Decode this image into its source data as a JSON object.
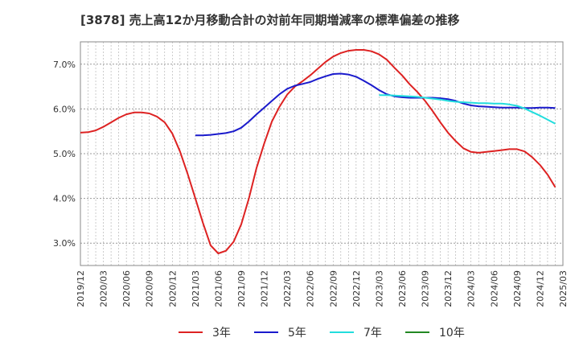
{
  "chart_data": {
    "type": "line",
    "title": "[3878]  売上高12か月移動合計の対前年同期増減率の標準偏差の推移",
    "xlabel": "",
    "ylabel": "",
    "ylim": [
      2.5,
      7.5
    ],
    "yticks": [
      "3.0%",
      "4.0%",
      "5.0%",
      "6.0%",
      "7.0%"
    ],
    "ytick_values": [
      3.0,
      4.0,
      5.0,
      6.0,
      7.0
    ],
    "xticks": [
      "2019/12",
      "2020/03",
      "2020/06",
      "2020/09",
      "2020/12",
      "2021/03",
      "2021/06",
      "2021/09",
      "2021/12",
      "2022/03",
      "2022/06",
      "2022/09",
      "2022/12",
      "2023/03",
      "2023/06",
      "2023/09",
      "2023/12",
      "2024/03",
      "2024/06",
      "2024/09",
      "2024/12",
      "2025/03"
    ],
    "grid": true,
    "legend_position": "bottom",
    "series": [
      {
        "name": "3年",
        "color": "#dd2222",
        "points": [
          [
            "2019/12",
            5.47
          ],
          [
            "2020/01",
            5.48
          ],
          [
            "2020/02",
            5.52
          ],
          [
            "2020/03",
            5.6
          ],
          [
            "2020/04",
            5.7
          ],
          [
            "2020/05",
            5.8
          ],
          [
            "2020/06",
            5.88
          ],
          [
            "2020/07",
            5.92
          ],
          [
            "2020/08",
            5.92
          ],
          [
            "2020/09",
            5.9
          ],
          [
            "2020/10",
            5.83
          ],
          [
            "2020/11",
            5.7
          ],
          [
            "2020/12",
            5.45
          ],
          [
            "2021/01",
            5.05
          ],
          [
            "2021/02",
            4.55
          ],
          [
            "2021/03",
            4.0
          ],
          [
            "2021/04",
            3.45
          ],
          [
            "2021/05",
            2.95
          ],
          [
            "2021/06",
            2.77
          ],
          [
            "2021/07",
            2.83
          ],
          [
            "2021/08",
            3.03
          ],
          [
            "2021/09",
            3.42
          ],
          [
            "2021/10",
            4.0
          ],
          [
            "2021/11",
            4.68
          ],
          [
            "2021/12",
            5.23
          ],
          [
            "2022/01",
            5.72
          ],
          [
            "2022/02",
            6.05
          ],
          [
            "2022/03",
            6.32
          ],
          [
            "2022/04",
            6.5
          ],
          [
            "2022/05",
            6.62
          ],
          [
            "2022/06",
            6.75
          ],
          [
            "2022/07",
            6.9
          ],
          [
            "2022/08",
            7.05
          ],
          [
            "2022/09",
            7.17
          ],
          [
            "2022/10",
            7.25
          ],
          [
            "2022/11",
            7.3
          ],
          [
            "2022/12",
            7.32
          ],
          [
            "2023/01",
            7.32
          ],
          [
            "2023/02",
            7.29
          ],
          [
            "2023/03",
            7.22
          ],
          [
            "2023/04",
            7.1
          ],
          [
            "2023/05",
            6.92
          ],
          [
            "2023/06",
            6.75
          ],
          [
            "2023/07",
            6.55
          ],
          [
            "2023/08",
            6.38
          ],
          [
            "2023/09",
            6.18
          ],
          [
            "2023/10",
            5.95
          ],
          [
            "2023/11",
            5.7
          ],
          [
            "2023/12",
            5.47
          ],
          [
            "2024/01",
            5.28
          ],
          [
            "2024/02",
            5.12
          ],
          [
            "2024/03",
            5.04
          ],
          [
            "2024/04",
            5.02
          ],
          [
            "2024/05",
            5.04
          ],
          [
            "2024/06",
            5.06
          ],
          [
            "2024/07",
            5.08
          ],
          [
            "2024/08",
            5.1
          ],
          [
            "2024/09",
            5.1
          ],
          [
            "2024/10",
            5.05
          ],
          [
            "2024/11",
            4.92
          ],
          [
            "2024/12",
            4.75
          ],
          [
            "2025/01",
            4.53
          ],
          [
            "2025/02",
            4.25
          ]
        ]
      },
      {
        "name": "5年",
        "color": "#1a1acc",
        "points": [
          [
            "2021/03",
            5.41
          ],
          [
            "2021/04",
            5.41
          ],
          [
            "2021/05",
            5.42
          ],
          [
            "2021/06",
            5.44
          ],
          [
            "2021/07",
            5.46
          ],
          [
            "2021/08",
            5.5
          ],
          [
            "2021/09",
            5.58
          ],
          [
            "2021/10",
            5.72
          ],
          [
            "2021/11",
            5.88
          ],
          [
            "2021/12",
            6.03
          ],
          [
            "2022/01",
            6.18
          ],
          [
            "2022/02",
            6.33
          ],
          [
            "2022/03",
            6.45
          ],
          [
            "2022/04",
            6.52
          ],
          [
            "2022/05",
            6.56
          ],
          [
            "2022/06",
            6.6
          ],
          [
            "2022/07",
            6.67
          ],
          [
            "2022/08",
            6.73
          ],
          [
            "2022/09",
            6.78
          ],
          [
            "2022/10",
            6.79
          ],
          [
            "2022/11",
            6.77
          ],
          [
            "2022/12",
            6.72
          ],
          [
            "2023/01",
            6.63
          ],
          [
            "2023/02",
            6.53
          ],
          [
            "2023/03",
            6.42
          ],
          [
            "2023/04",
            6.33
          ],
          [
            "2023/05",
            6.28
          ],
          [
            "2023/06",
            6.26
          ],
          [
            "2023/07",
            6.25
          ],
          [
            "2023/08",
            6.25
          ],
          [
            "2023/09",
            6.25
          ],
          [
            "2023/10",
            6.25
          ],
          [
            "2023/11",
            6.24
          ],
          [
            "2023/12",
            6.22
          ],
          [
            "2024/01",
            6.18
          ],
          [
            "2024/02",
            6.12
          ],
          [
            "2024/03",
            6.08
          ],
          [
            "2024/04",
            6.06
          ],
          [
            "2024/05",
            6.05
          ],
          [
            "2024/06",
            6.04
          ],
          [
            "2024/07",
            6.03
          ],
          [
            "2024/08",
            6.03
          ],
          [
            "2024/09",
            6.03
          ],
          [
            "2024/10",
            6.02
          ],
          [
            "2024/11",
            6.02
          ],
          [
            "2024/12",
            6.03
          ],
          [
            "2025/01",
            6.03
          ],
          [
            "2025/02",
            6.02
          ]
        ]
      },
      {
        "name": "7年",
        "color": "#22dddd",
        "points": [
          [
            "2023/03",
            6.31
          ],
          [
            "2023/04",
            6.31
          ],
          [
            "2023/05",
            6.3
          ],
          [
            "2023/06",
            6.29
          ],
          [
            "2023/07",
            6.28
          ],
          [
            "2023/08",
            6.27
          ],
          [
            "2023/09",
            6.25
          ],
          [
            "2023/10",
            6.23
          ],
          [
            "2023/11",
            6.21
          ],
          [
            "2023/12",
            6.18
          ],
          [
            "2024/01",
            6.16
          ],
          [
            "2024/02",
            6.15
          ],
          [
            "2024/03",
            6.14
          ],
          [
            "2024/04",
            6.13
          ],
          [
            "2024/05",
            6.13
          ],
          [
            "2024/06",
            6.12
          ],
          [
            "2024/07",
            6.12
          ],
          [
            "2024/08",
            6.1
          ],
          [
            "2024/09",
            6.07
          ],
          [
            "2024/10",
            6.01
          ],
          [
            "2024/11",
            5.93
          ],
          [
            "2024/12",
            5.85
          ],
          [
            "2025/01",
            5.76
          ],
          [
            "2025/02",
            5.67
          ]
        ]
      },
      {
        "name": "10年",
        "color": "#228822",
        "points": []
      }
    ]
  }
}
